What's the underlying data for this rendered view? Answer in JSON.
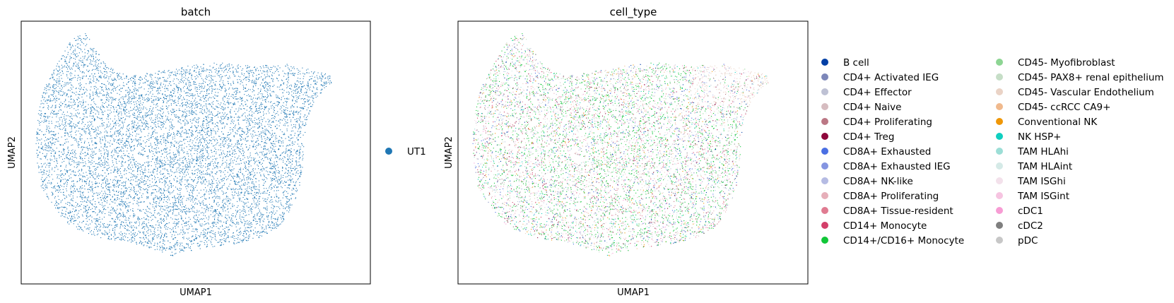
{
  "chart_data": [
    {
      "type": "scatter",
      "title": "batch",
      "xlabel": "UMAP1",
      "ylabel": "UMAP2",
      "grid": false,
      "legend": {
        "placement": "right",
        "entries": [
          {
            "name": "UT1",
            "color": "#1f77b4"
          }
        ]
      }
    },
    {
      "type": "scatter",
      "title": "cell_type",
      "xlabel": "UMAP1",
      "ylabel": "UMAP2",
      "grid": false,
      "legend": {
        "placement": "right",
        "columns": 2,
        "entries": [
          {
            "name": "B cell",
            "color": "#023fa5"
          },
          {
            "name": "CD4+ Activated IEG",
            "color": "#7d87b9"
          },
          {
            "name": "CD4+ Effector",
            "color": "#bec1d4"
          },
          {
            "name": "CD4+ Naive",
            "color": "#d6bcc0"
          },
          {
            "name": "CD4+ Proliferating",
            "color": "#bb7784"
          },
          {
            "name": "CD4+ Treg",
            "color": "#8e063b"
          },
          {
            "name": "CD8A+ Exhausted",
            "color": "#4a6fe3"
          },
          {
            "name": "CD8A+ Exhausted IEG",
            "color": "#8595e1"
          },
          {
            "name": "CD8A+ NK-like",
            "color": "#b5bbe3"
          },
          {
            "name": "CD8A+ Proliferating",
            "color": "#e6afb9"
          },
          {
            "name": "CD8A+ Tissue-resident",
            "color": "#e07b91"
          },
          {
            "name": "CD14+ Monocyte",
            "color": "#d33f6a"
          },
          {
            "name": "CD14+/CD16+ Monocyte",
            "color": "#11c638"
          },
          {
            "name": "CD45- Myofibroblast",
            "color": "#8dd593"
          },
          {
            "name": "CD45- PAX8+ renal epithelium",
            "color": "#c6dec7"
          },
          {
            "name": "CD45- Vascular Endothelium",
            "color": "#ead3c6"
          },
          {
            "name": "CD45- ccRCC CA9+",
            "color": "#f0b98d"
          },
          {
            "name": "Conventional NK",
            "color": "#ef9708"
          },
          {
            "name": "NK HSP+",
            "color": "#0fcfc0"
          },
          {
            "name": "TAM HLAhi",
            "color": "#9cded6"
          },
          {
            "name": "TAM HLAint",
            "color": "#d5eae7"
          },
          {
            "name": "TAM ISGhi",
            "color": "#f3e1eb"
          },
          {
            "name": "TAM ISGint",
            "color": "#f6c4e1"
          },
          {
            "name": "cDC1",
            "color": "#f79cd4"
          },
          {
            "name": "cDC2",
            "color": "#7f7f7f"
          },
          {
            "name": "pDC",
            "color": "#c7c7c7"
          }
        ]
      }
    }
  ]
}
